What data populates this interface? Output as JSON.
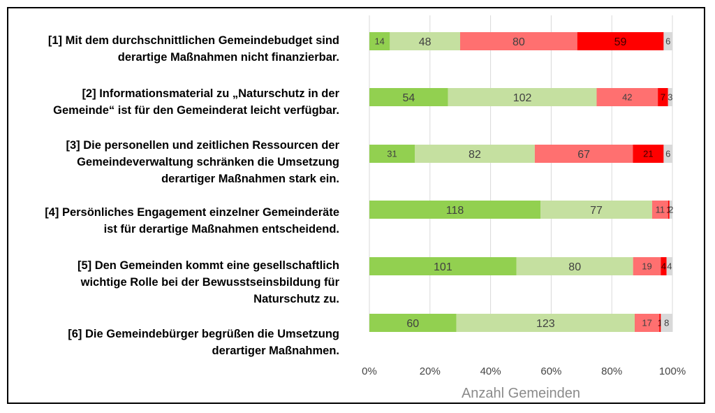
{
  "chart_data": {
    "type": "bar",
    "orientation": "horizontal",
    "stacking": "percent",
    "xlabel": "Anzahl Gemeinden",
    "xlim": [
      0,
      100
    ],
    "x_ticks": [
      "0%",
      "20%",
      "40%",
      "60%",
      "80%",
      "100%"
    ],
    "grid": true,
    "categories": [
      [
        "[1] Mit dem durchschnittlichen Gemeindebudget sind",
        "derartige Maßnahmen nicht finanzierbar."
      ],
      [
        "[2] Informationsmaterial zu „Naturschutz in der",
        "Gemeinde“ ist für den Gemeinderat leicht verfügbar."
      ],
      [
        "[3] Die personellen und zeitlichen Ressourcen der",
        "Gemeindeverwaltung schränken die Umsetzung",
        "derartiger Maßnahmen stark ein."
      ],
      [
        "[4] Persönliches Engagement einzelner Gemeinderäte",
        "ist für derartige Maßnahmen entscheidend."
      ],
      [
        "[5] Den Gemeinden kommt eine gesellschaftlich",
        "wichtige Rolle bei der Bewusstseinsbildung für",
        "Naturschutz zu."
      ],
      [
        "[6] Die Gemeindebürger begrüßen die Umsetzung",
        "derartiger Maßnahmen."
      ]
    ],
    "series": [
      {
        "name": "series-1",
        "color": "#92d050",
        "values": [
          14,
          54,
          31,
          118,
          101,
          60
        ]
      },
      {
        "name": "series-2",
        "color": "#c5e0a0",
        "values": [
          48,
          102,
          82,
          77,
          80,
          123
        ]
      },
      {
        "name": "series-3",
        "color": "#ff7070",
        "values": [
          80,
          42,
          67,
          11,
          19,
          17
        ]
      },
      {
        "name": "series-4",
        "color": "#ff0000",
        "values": [
          59,
          7,
          21,
          1,
          4,
          1
        ]
      },
      {
        "name": "series-5",
        "color": "#d9d9d9",
        "values": [
          6,
          3,
          6,
          2,
          4,
          8
        ]
      }
    ]
  }
}
